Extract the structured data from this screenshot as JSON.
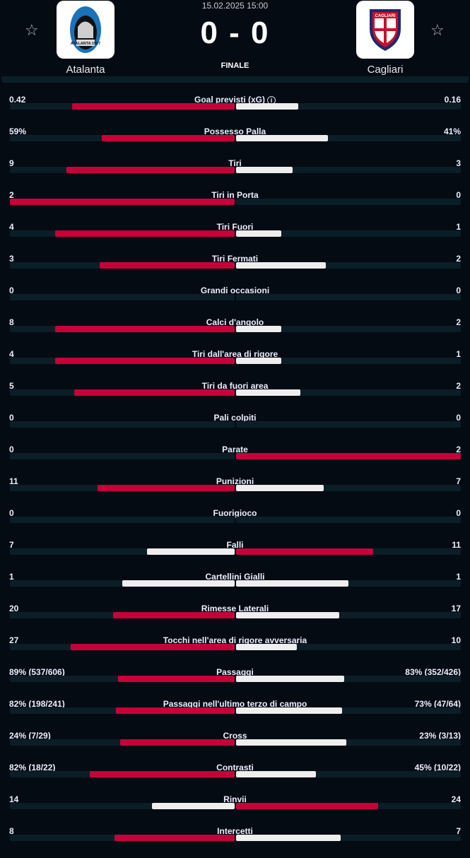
{
  "match": {
    "date": "15.02.2025 15:00",
    "score": "0 - 0",
    "status": "FINALE",
    "home": "Atalanta",
    "away": "Cagliari",
    "home_logo_text": "ATALANTA 1907",
    "away_logo_text": "CAGLIARI"
  },
  "colors": {
    "red": "#c8003a",
    "white": "#eeeeee",
    "track": "#0b1e28"
  },
  "stats": [
    {
      "label": "Goal previsti (xG)",
      "left": "0.42",
      "right": "0.16",
      "lv": 0.42,
      "rv": 0.16,
      "info": true
    },
    {
      "label": "Possesso Palla",
      "left": "59%",
      "right": "41%",
      "lv": 59,
      "rv": 41
    },
    {
      "label": "Tiri",
      "left": "9",
      "right": "3",
      "lv": 9,
      "rv": 3
    },
    {
      "label": "Tiri in Porta",
      "left": "2",
      "right": "0",
      "lv": 2,
      "rv": 0
    },
    {
      "label": "Tiri Fuori",
      "left": "4",
      "right": "1",
      "lv": 4,
      "rv": 1
    },
    {
      "label": "Tiri Fermati",
      "left": "3",
      "right": "2",
      "lv": 3,
      "rv": 2
    },
    {
      "label": "Grandi occasioni",
      "left": "0",
      "right": "0",
      "lv": 0,
      "rv": 0
    },
    {
      "label": "Calci d'angolo",
      "left": "8",
      "right": "2",
      "lv": 8,
      "rv": 2
    },
    {
      "label": "Tiri dall'area di rigore",
      "left": "4",
      "right": "1",
      "lv": 4,
      "rv": 1
    },
    {
      "label": "Tiri da fuori area",
      "left": "5",
      "right": "2",
      "lv": 5,
      "rv": 2
    },
    {
      "label": "Pali colpiti",
      "left": "0",
      "right": "0",
      "lv": 0,
      "rv": 0
    },
    {
      "label": "Parate",
      "left": "0",
      "right": "2",
      "lv": 0,
      "rv": 2
    },
    {
      "label": "Punizioni",
      "left": "11",
      "right": "7",
      "lv": 11,
      "rv": 7
    },
    {
      "label": "Fuorigioco",
      "left": "0",
      "right": "0",
      "lv": 0,
      "rv": 0
    },
    {
      "label": "Falli",
      "left": "7",
      "right": "11",
      "lv": 7,
      "rv": 11
    },
    {
      "label": "Cartellini Gialli",
      "left": "1",
      "right": "1",
      "lv": 1,
      "rv": 1
    },
    {
      "label": "Rimesse Laterali",
      "left": "20",
      "right": "17",
      "lv": 20,
      "rv": 17
    },
    {
      "label": "Tocchi nell'area di rigore avversaria",
      "left": "27",
      "right": "10",
      "lv": 27,
      "rv": 10
    },
    {
      "label": "Passaggi",
      "left": "89% (537/606)",
      "right": "83% (352/426)",
      "lv": 89,
      "rv": 83
    },
    {
      "label": "Passaggi nell'ultimo terzo di campo",
      "left": "82% (198/241)",
      "right": "73% (47/64)",
      "lv": 82,
      "rv": 73
    },
    {
      "label": "Cross",
      "left": "24% (7/29)",
      "right": "23% (3/13)",
      "lv": 24,
      "rv": 23
    },
    {
      "label": "Contrasti",
      "left": "82% (18/22)",
      "right": "45% (10/22)",
      "lv": 82,
      "rv": 45
    },
    {
      "label": "Rinvii",
      "left": "14",
      "right": "24",
      "lv": 14,
      "rv": 24
    },
    {
      "label": "Intercetti",
      "left": "8",
      "right": "7",
      "lv": 8,
      "rv": 7
    }
  ]
}
